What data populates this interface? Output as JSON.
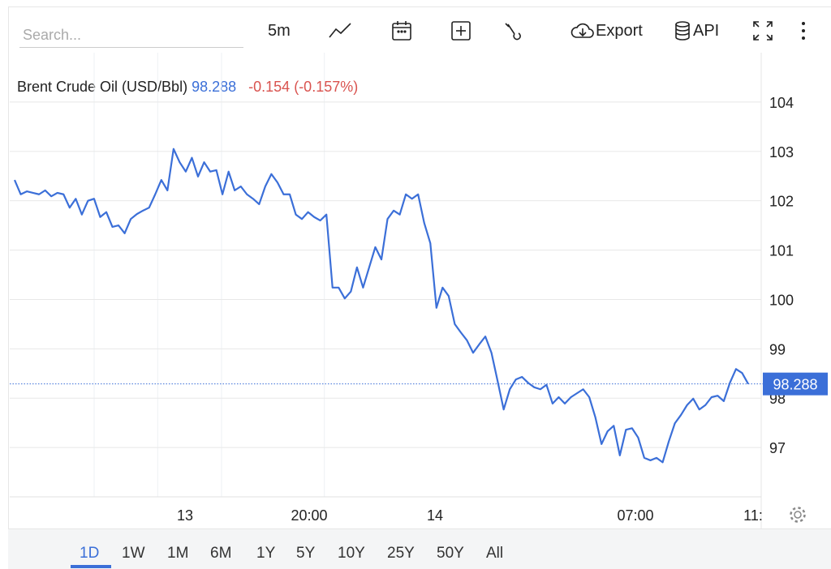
{
  "toolbar": {
    "search_placeholder": "Search...",
    "interval": "5m",
    "export_label": "Export",
    "api_label": "API",
    "icons": [
      "line-chart-icon",
      "calendar-icon",
      "add-box-icon",
      "wrench-icon",
      "cloud-download-icon",
      "database-icon",
      "fullscreen-icon",
      "more-vertical-icon"
    ]
  },
  "legend": {
    "name": "Brent Crude Oil (USD/Bbl)",
    "price": "98.288",
    "change": "-0.154 (-0.157%)"
  },
  "ranges": [
    "1D",
    "1W",
    "1M",
    "6M",
    "1Y",
    "5Y",
    "10Y",
    "25Y",
    "50Y",
    "All"
  ],
  "active_range": "1D",
  "colors": {
    "line": "#3b6fd8",
    "negative": "#d9534f",
    "grid": "#e8e8e8"
  },
  "chart_data": {
    "type": "line",
    "title": "",
    "xlabel": "",
    "ylabel": "",
    "ylim": [
      96,
      105
    ],
    "y_ticks": [
      "97",
      "98",
      "99",
      "100",
      "101",
      "102",
      "103",
      "104"
    ],
    "x_ticks": [
      "13",
      "20:00",
      "14",
      "07:00",
      "11:"
    ],
    "last_value": "98.288",
    "grid": true,
    "values": [
      102.42,
      102.13,
      102.19,
      102.16,
      102.13,
      102.21,
      102.09,
      102.16,
      102.13,
      101.86,
      102.04,
      101.72,
      102.0,
      102.04,
      101.67,
      101.77,
      101.47,
      101.5,
      101.34,
      101.63,
      101.73,
      101.8,
      101.86,
      102.13,
      102.42,
      102.21,
      103.05,
      102.78,
      102.59,
      102.87,
      102.49,
      102.78,
      102.59,
      102.62,
      102.13,
      102.59,
      102.21,
      102.29,
      102.13,
      102.04,
      101.93,
      102.29,
      102.54,
      102.37,
      102.13,
      102.13,
      101.72,
      101.63,
      101.77,
      101.67,
      101.6,
      101.72,
      100.24,
      100.24,
      100.02,
      100.16,
      100.65,
      100.24,
      100.65,
      101.06,
      100.81,
      101.63,
      101.8,
      101.72,
      102.13,
      102.04,
      102.13,
      101.55,
      101.14,
      99.83,
      100.24,
      100.07,
      99.5,
      99.33,
      99.17,
      98.92,
      99.09,
      99.25,
      98.92,
      98.35,
      97.77,
      98.18,
      98.38,
      98.43,
      98.31,
      98.22,
      98.18,
      98.27,
      97.89,
      98.02,
      97.89,
      98.02,
      98.1,
      98.18,
      98.02,
      97.61,
      97.07,
      97.33,
      97.44,
      96.84,
      97.36,
      97.39,
      97.2,
      96.79,
      96.74,
      96.79,
      96.7,
      97.12,
      97.49,
      97.66,
      97.86,
      97.99,
      97.77,
      97.86,
      98.02,
      98.05,
      97.94,
      98.31,
      98.59,
      98.51,
      98.288
    ]
  }
}
